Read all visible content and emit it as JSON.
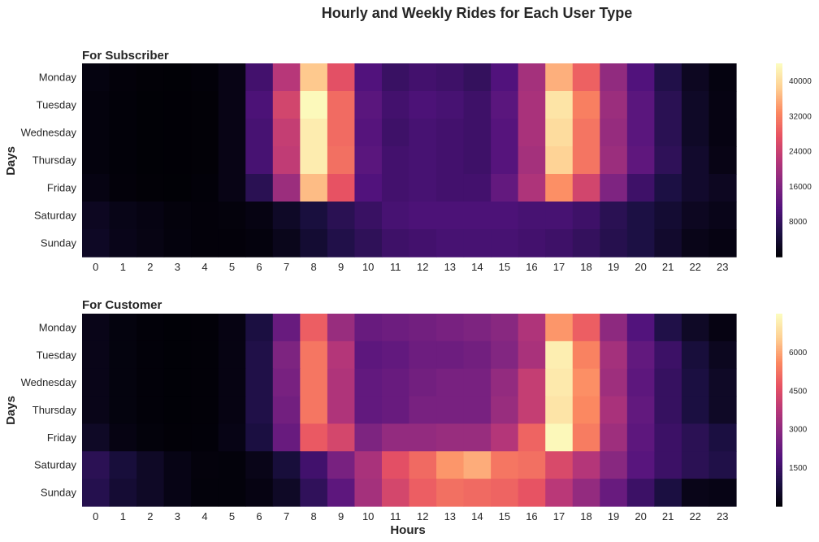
{
  "figure": {
    "title": "Hourly and Weekly Rides for Each User Type",
    "colormap": "magma",
    "colormap_stops": [
      "#000004",
      "#1c1044",
      "#51127c",
      "#832681",
      "#b73779",
      "#e75263",
      "#fc8961",
      "#fecf92",
      "#fcfdbf"
    ]
  },
  "chart_data": [
    {
      "type": "heatmap",
      "title": "For Subscriber",
      "xlabel": "",
      "ylabel": "Days",
      "x": [
        "0",
        "1",
        "2",
        "3",
        "4",
        "5",
        "6",
        "7",
        "8",
        "9",
        "10",
        "11",
        "12",
        "13",
        "14",
        "15",
        "16",
        "17",
        "18",
        "19",
        "20",
        "21",
        "22",
        "23"
      ],
      "y": [
        "Monday",
        "Tuesday",
        "Wednesday",
        "Thursday",
        "Friday",
        "Saturday",
        "Sunday"
      ],
      "vmin": 0,
      "vmax": 44000,
      "colorbar_ticks": [
        8000,
        16000,
        24000,
        32000,
        40000
      ],
      "values": [
        [
          1000,
          500,
          300,
          200,
          400,
          1500,
          9500,
          22000,
          38000,
          27000,
          11000,
          8500,
          9500,
          9000,
          8000,
          11000,
          20000,
          36000,
          29000,
          18000,
          11000,
          6000,
          2500,
          1000
        ],
        [
          800,
          400,
          200,
          150,
          300,
          1500,
          10500,
          25000,
          43500,
          30000,
          12000,
          9500,
          10500,
          10000,
          9000,
          12000,
          20500,
          41000,
          32000,
          19000,
          12000,
          7000,
          3000,
          1200
        ],
        [
          800,
          400,
          200,
          150,
          300,
          1500,
          10000,
          23500,
          42000,
          30000,
          11500,
          9000,
          10000,
          9500,
          9000,
          11500,
          20500,
          40000,
          31000,
          18500,
          12000,
          7000,
          3000,
          1200
        ],
        [
          800,
          400,
          200,
          150,
          300,
          1500,
          10000,
          23000,
          42000,
          30500,
          12000,
          9500,
          10000,
          9500,
          9000,
          11500,
          20000,
          39000,
          31000,
          19000,
          12500,
          7500,
          3500,
          1500
        ],
        [
          1200,
          500,
          300,
          200,
          400,
          1500,
          7000,
          19000,
          37000,
          27500,
          11000,
          9500,
          10000,
          9500,
          9500,
          13000,
          21000,
          33500,
          25000,
          16000,
          9000,
          5500,
          3500,
          2500
        ],
        [
          2500,
          1600,
          1200,
          700,
          500,
          700,
          1200,
          3000,
          5000,
          7000,
          8500,
          10000,
          10500,
          10500,
          10500,
          10500,
          10000,
          10000,
          9000,
          7000,
          5500,
          4000,
          2500,
          1800
        ],
        [
          2800,
          1800,
          1300,
          800,
          500,
          500,
          800,
          2000,
          4000,
          6000,
          7500,
          9000,
          9500,
          10000,
          10000,
          10000,
          9500,
          9000,
          8000,
          6500,
          5500,
          3500,
          1700,
          1200
        ]
      ]
    },
    {
      "type": "heatmap",
      "title": "For Customer",
      "xlabel": "Hours",
      "ylabel": "Days",
      "x": [
        "0",
        "1",
        "2",
        "3",
        "4",
        "5",
        "6",
        "7",
        "8",
        "9",
        "10",
        "11",
        "12",
        "13",
        "14",
        "15",
        "16",
        "17",
        "18",
        "19",
        "20",
        "21",
        "22",
        "23"
      ],
      "y": [
        "Monday",
        "Tuesday",
        "Wednesday",
        "Thursday",
        "Friday",
        "Saturday",
        "Sunday"
      ],
      "vmin": 0,
      "vmax": 7500,
      "colorbar_ticks": [
        1500,
        3000,
        4500,
        6000
      ],
      "values": [
        [
          300,
          150,
          80,
          50,
          60,
          200,
          900,
          2300,
          4900,
          3200,
          2300,
          2400,
          2500,
          2600,
          2700,
          2900,
          3600,
          5800,
          4900,
          3000,
          1900,
          1000,
          500,
          200
        ],
        [
          300,
          150,
          80,
          50,
          60,
          200,
          1000,
          2700,
          5300,
          3700,
          2100,
          2200,
          2400,
          2400,
          2500,
          2800,
          3500,
          7200,
          5500,
          3400,
          2200,
          1500,
          800,
          400
        ],
        [
          300,
          150,
          80,
          50,
          60,
          200,
          1000,
          2600,
          5300,
          3600,
          2200,
          2300,
          2500,
          2600,
          2600,
          3100,
          4000,
          7100,
          5700,
          3300,
          2100,
          1400,
          900,
          500
        ],
        [
          300,
          150,
          80,
          50,
          60,
          200,
          1000,
          2500,
          5300,
          3600,
          2200,
          2300,
          2600,
          2600,
          2600,
          3200,
          4000,
          7000,
          5600,
          3500,
          2200,
          1400,
          900,
          500
        ],
        [
          500,
          200,
          100,
          60,
          70,
          250,
          900,
          2300,
          4800,
          4300,
          2700,
          3100,
          3100,
          3200,
          3200,
          3700,
          5000,
          7400,
          5400,
          3300,
          2100,
          1500,
          1200,
          900
        ],
        [
          1200,
          800,
          500,
          250,
          120,
          100,
          300,
          800,
          1600,
          2600,
          3500,
          4600,
          5100,
          5800,
          6100,
          5300,
          5200,
          4400,
          3700,
          2900,
          2000,
          1500,
          1200,
          1000
        ],
        [
          1100,
          700,
          500,
          250,
          100,
          100,
          200,
          500,
          1300,
          2100,
          3400,
          4300,
          4900,
          5200,
          5100,
          5000,
          4700,
          3800,
          3100,
          2300,
          1500,
          900,
          300,
          250
        ]
      ]
    }
  ]
}
